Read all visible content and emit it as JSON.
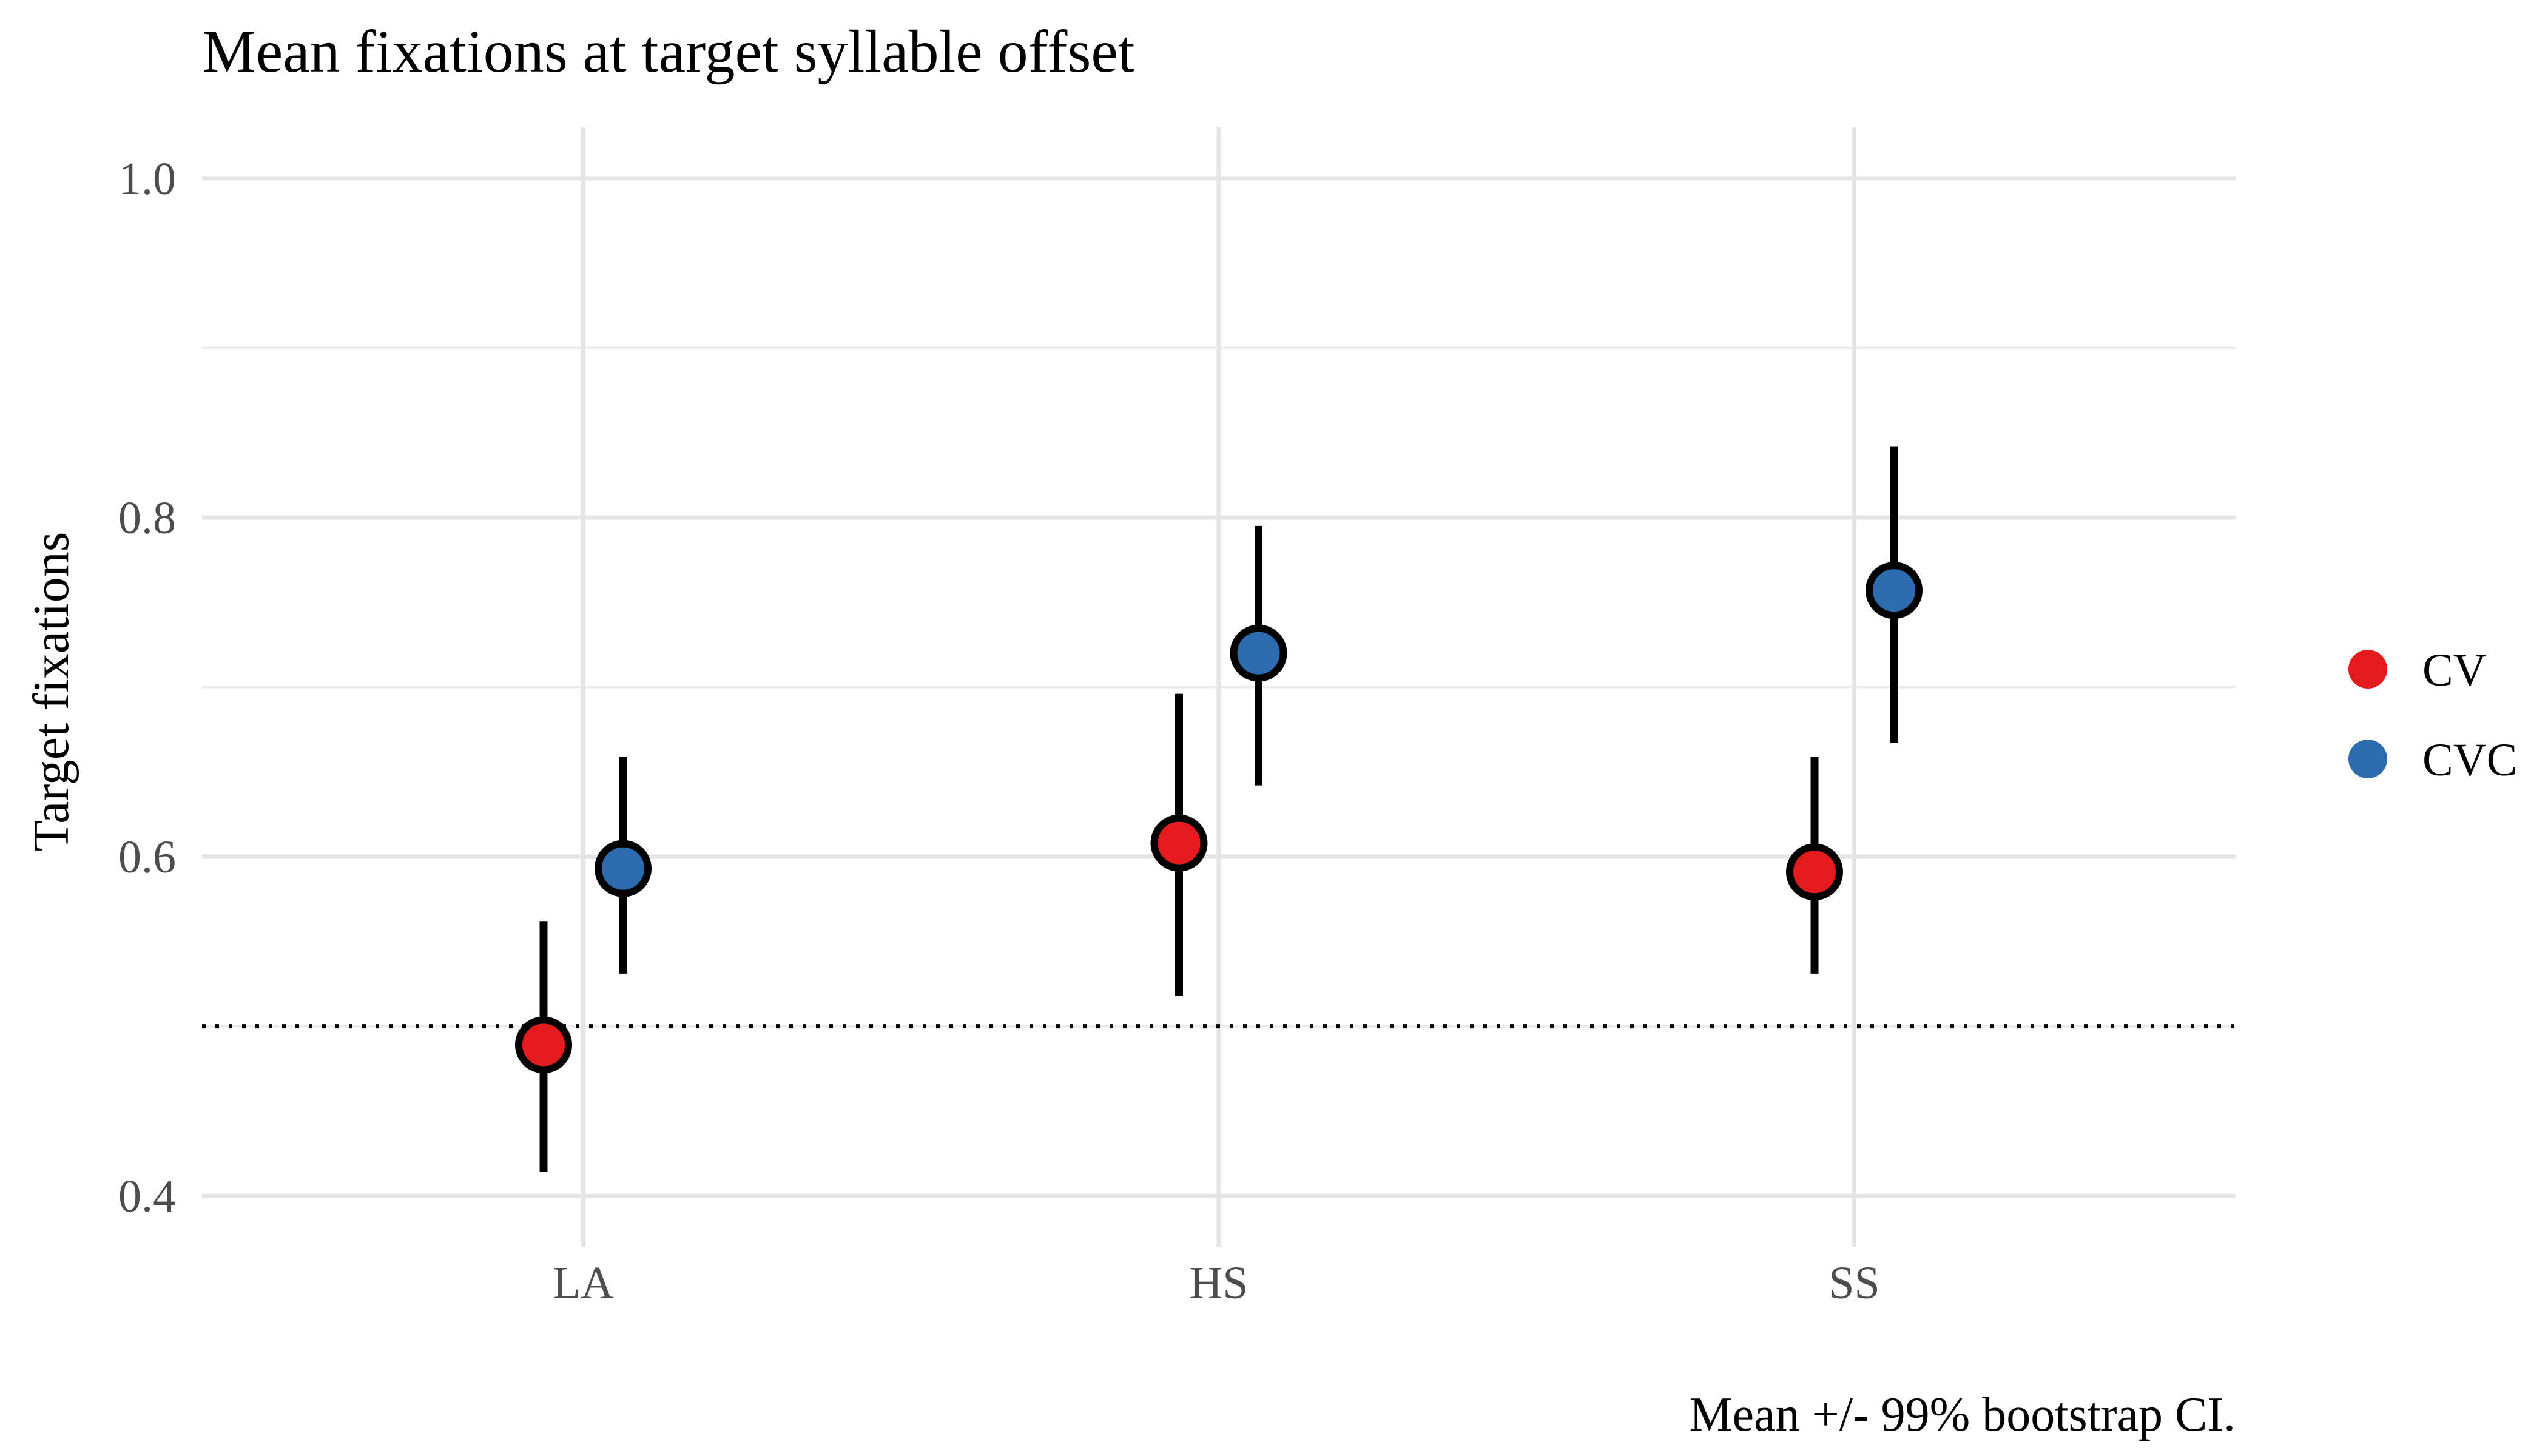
{
  "chart_data": {
    "type": "scatter",
    "title": "Mean fixations at target syllable offset",
    "xlabel": "",
    "ylabel": "Target fixations",
    "caption": "Mean +/- 99% bootstrap CI.",
    "categories": [
      "LA",
      "HS",
      "SS"
    ],
    "ylim": [
      0.37,
      1.03
    ],
    "yticks": [
      0.4,
      0.6,
      0.8,
      1.0
    ],
    "ytick_labels": [
      "0.4",
      "0.6",
      "0.8",
      "1.0"
    ],
    "reference_line": 0.5,
    "grid": true,
    "legend_position": "right",
    "series": [
      {
        "name": "CV",
        "color": "#e41a1c",
        "points": [
          {
            "category": "LA",
            "mean": 0.489,
            "lower": 0.414,
            "upper": 0.562
          },
          {
            "category": "HS",
            "mean": 0.608,
            "lower": 0.518,
            "upper": 0.696
          },
          {
            "category": "SS",
            "mean": 0.591,
            "lower": 0.531,
            "upper": 0.659
          }
        ]
      },
      {
        "name": "CVC",
        "color": "#2c6bad",
        "points": [
          {
            "category": "LA",
            "mean": 0.593,
            "lower": 0.531,
            "upper": 0.659
          },
          {
            "category": "HS",
            "mean": 0.72,
            "lower": 0.642,
            "upper": 0.795
          },
          {
            "category": "SS",
            "mean": 0.757,
            "lower": 0.667,
            "upper": 0.842
          }
        ]
      }
    ]
  }
}
